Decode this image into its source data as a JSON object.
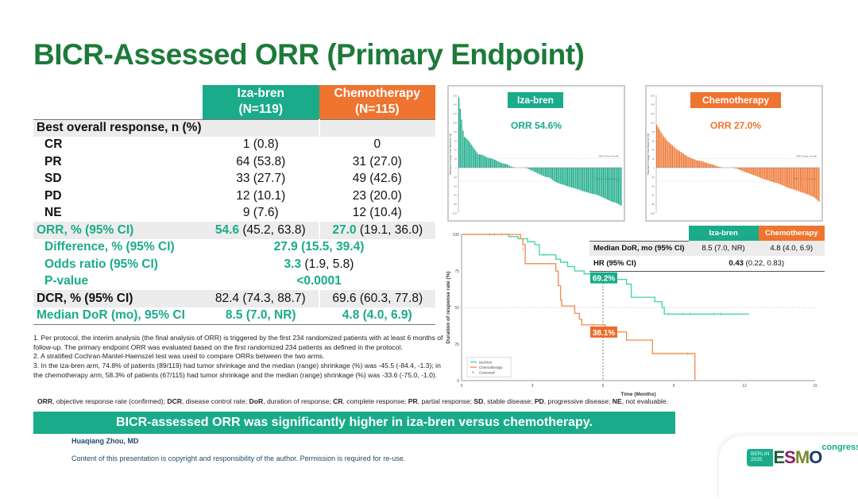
{
  "title": "BICR-Assessed ORR (Primary Endpoint)",
  "colors": {
    "teal": "#1aab8a",
    "orange": "#ee7430",
    "title": "#1d7a3a"
  },
  "table": {
    "headers": [
      {
        "arm": "Iza-bren",
        "n": "(N=119)"
      },
      {
        "arm": "Chemotherapy",
        "n": "(N=115)"
      }
    ],
    "section": "Best overall response, n (%)",
    "rows": [
      {
        "label": "CR",
        "a": "1 (0.8)",
        "b": "0"
      },
      {
        "label": "PR",
        "a": "64 (53.8)",
        "b": "31 (27.0)"
      },
      {
        "label": "SD",
        "a": "33 (27.7)",
        "b": "49 (42.6)"
      },
      {
        "label": "PD",
        "a": "12 (10.1)",
        "b": "23 (20.0)"
      },
      {
        "label": "NE",
        "a": "9 (7.6)",
        "b": "12 (10.4)"
      }
    ],
    "orr": {
      "label": "ORR, % (95% CI)",
      "a_val": "54.6",
      "a_ci": " (45.2, 63.8)",
      "b_val": "27.0",
      "b_ci": " (19.1, 36.0)"
    },
    "difference": {
      "label": "Difference, % (95% CI)",
      "value": "27.9 (15.5, 39.4)"
    },
    "odds": {
      "label": "Odds ratio (95% CI)",
      "val": "3.3",
      "ci": " (1.9, 5.8)"
    },
    "pvalue": {
      "label": "P-value",
      "value": "<0.0001"
    },
    "dcr": {
      "label": "DCR, % (95% CI)",
      "a": "82.4 (74.3, 88.7)",
      "b": "69.6 (60.3, 77.8)"
    },
    "dor": {
      "label": "Median DoR (mo), 95% CI",
      "a": "8.5 (7.0, NR)",
      "b": "4.8 (4.0, 6.9)"
    }
  },
  "footnotes": [
    "1. Per protocol, the interim analysis (the final analysis of ORR) is triggered by the first 234 randomized patients with at least 6 months of follow-up. The primary endpoint ORR was evaluated based on the first randomized 234 patients as defined in the protocol.",
    "2. A stratified Cochran-Mantel-Haenszel test was used to compare ORRs between the two arms.",
    "3. In the iza-bren arm, 74.8% of patients (89/119) had tumor shrinkage and the median (range) shrinkage (%) was -45.5 (-84.4, -1.3); in the chemotherapy arm, 58.3% of patients (67/115) had tumor shrinkage and the median (range) shrinkage (%) was -33.6 (-75.0, -1.0)."
  ],
  "abbreviations": [
    {
      "t": "ORR",
      "d": ", objective response rate (confirmed); "
    },
    {
      "t": "DCR",
      "d": ", disease control rate; "
    },
    {
      "t": "DoR",
      "d": ", duration of response; "
    },
    {
      "t": "CR",
      "d": ", complete response; "
    },
    {
      "t": "PR",
      "d": ", partial response; "
    },
    {
      "t": "SD",
      "d": ", stable disease; "
    },
    {
      "t": "PD",
      "d": ", progressive disease; "
    },
    {
      "t": "NE",
      "d": ", not evaluable."
    }
  ],
  "banner": "BICR-assessed ORR was significantly higher in iza-bren versus chemotherapy.",
  "author": "Huaqiang Zhou, MD",
  "copyright": "Content of this presentation is copyright and responsibility of the author. Permission is required for re-use.",
  "logo": {
    "city": "BERLIN",
    "year": "2025",
    "name": "ESMO",
    "suffix": "congress"
  },
  "dor_table": {
    "h1": "Iza-bren",
    "h2": "Chemotherapy",
    "r1": "Median DoR, mo (95% CI)",
    "r1a": "8.5 (7.0, NR)",
    "r1b": "4.8 (4.0, 6.9)",
    "r2": "HR (95% CI)",
    "r2v": "0.43",
    "r2ci": " (0.22, 0.83)"
  },
  "chart_data": [
    {
      "type": "bar",
      "title": "Iza-bren",
      "annotation": "ORR 54.6%",
      "ylabel": "Maximum Change from Baseline (%)",
      "ylim": [
        -100,
        160
      ],
      "yticks": [
        160,
        140,
        120,
        100,
        80,
        60,
        40,
        20,
        0,
        -20,
        -40,
        -60,
        -80,
        -100
      ],
      "reference_lines": [
        {
          "y": 20,
          "label": "20% Tumor Growth"
        },
        {
          "y": -30,
          "label": "30% Tumor Reduction"
        }
      ],
      "color": "#1aab8a",
      "profile": [
        155,
        70,
        60,
        45,
        30,
        28,
        22,
        20,
        15,
        10,
        8,
        2,
        0,
        0,
        0,
        -5,
        -10,
        -15,
        -20,
        -22,
        -30,
        -35,
        -38,
        -42,
        -45,
        -48,
        -52,
        -55,
        -58,
        -60,
        -65,
        -70,
        -75,
        -78,
        -84
      ]
    },
    {
      "type": "bar",
      "title": "Chemotherapy",
      "annotation": "ORR 27.0%",
      "ylabel": "Maximum Change from Baseline (%)",
      "ylim": [
        -100,
        160
      ],
      "yticks": [
        160,
        140,
        120,
        100,
        80,
        60,
        40,
        20,
        0,
        -20,
        -40,
        -60,
        -80,
        -100
      ],
      "reference_lines": [
        {
          "y": 20,
          "label": "20% Tumor Growth"
        },
        {
          "y": -30,
          "label": "30% Tumor Reduction"
        }
      ],
      "color": "#ee7430",
      "profile": [
        95,
        75,
        60,
        50,
        40,
        33,
        25,
        20,
        16,
        14,
        10,
        7,
        3,
        0,
        0,
        0,
        -3,
        -8,
        -12,
        -16,
        -20,
        -25,
        -28,
        -32,
        -35,
        -40,
        -45,
        -48,
        -52,
        -56,
        -60,
        -65,
        -75
      ]
    },
    {
      "type": "line",
      "xlabel": "Time (Months)",
      "ylabel": "Duration of response rate (%)",
      "xlim": [
        0,
        15
      ],
      "ylim": [
        0,
        100
      ],
      "xticks": [
        0,
        3,
        6,
        9,
        12,
        15
      ],
      "yticks": [
        0,
        25,
        50,
        75,
        100
      ],
      "legend": "bottom-left",
      "legend_entries": [
        "iza-bren",
        "Chemotherapy",
        "Censored"
      ],
      "annotations": [
        {
          "x": 6,
          "y": 69.2,
          "label": "69.2%"
        },
        {
          "x": 6,
          "y": 38.1,
          "label": "38.1%"
        }
      ],
      "series": [
        {
          "name": "iza-bren",
          "color": "#3dd4a4",
          "points": [
            [
              0,
              100
            ],
            [
              2,
              98.5
            ],
            [
              2.4,
              97
            ],
            [
              2.8,
              95
            ],
            [
              3.1,
              93
            ],
            [
              3.3,
              86
            ],
            [
              3.9,
              86
            ],
            [
              4.0,
              83
            ],
            [
              4.2,
              81
            ],
            [
              4.5,
              78
            ],
            [
              4.8,
              75
            ],
            [
              5.2,
              73
            ],
            [
              5.6,
              71
            ],
            [
              5.9,
              69.2
            ],
            [
              6.8,
              69.2
            ],
            [
              7.0,
              66
            ],
            [
              7.2,
              57
            ],
            [
              8.1,
              57
            ],
            [
              8.2,
              54
            ],
            [
              8.5,
              50
            ],
            [
              8.6,
              45.5
            ],
            [
              12.2,
              45.5
            ]
          ],
          "censored": [
            [
              1.2,
              100
            ],
            [
              1.4,
              100
            ],
            [
              1.7,
              100
            ],
            [
              3.5,
              86
            ],
            [
              6.5,
              69.2
            ],
            [
              8.8,
              45.5
            ],
            [
              9.4,
              45.5
            ],
            [
              9.7,
              45.5
            ],
            [
              10.7,
              45.5
            ],
            [
              11,
              45.5
            ]
          ]
        },
        {
          "name": "Chemotherapy",
          "color": "#f08a4b",
          "points": [
            [
              0,
              100
            ],
            [
              2.3,
              100
            ],
            [
              2.5,
              97
            ],
            [
              2.6,
              93
            ],
            [
              2.7,
              80
            ],
            [
              3.7,
              80
            ],
            [
              4.0,
              75
            ],
            [
              4.1,
              65
            ],
            [
              4.2,
              55
            ],
            [
              4.25,
              51
            ],
            [
              4.8,
              51
            ],
            [
              4.8,
              46
            ],
            [
              5.0,
              42
            ],
            [
              5.1,
              38.1
            ],
            [
              6.1,
              38.1
            ],
            [
              6.1,
              33.3
            ],
            [
              6.9,
              33.3
            ],
            [
              7.0,
              27.7
            ],
            [
              8.1,
              27.7
            ],
            [
              8.1,
              18.5
            ],
            [
              9.9,
              18.5
            ],
            [
              9.9,
              0
            ]
          ],
          "censored": [
            [
              2.6,
              90
            ],
            [
              5.6,
              38.1
            ],
            [
              7.0,
              28
            ],
            [
              9.6,
              18.5
            ]
          ]
        }
      ]
    }
  ]
}
